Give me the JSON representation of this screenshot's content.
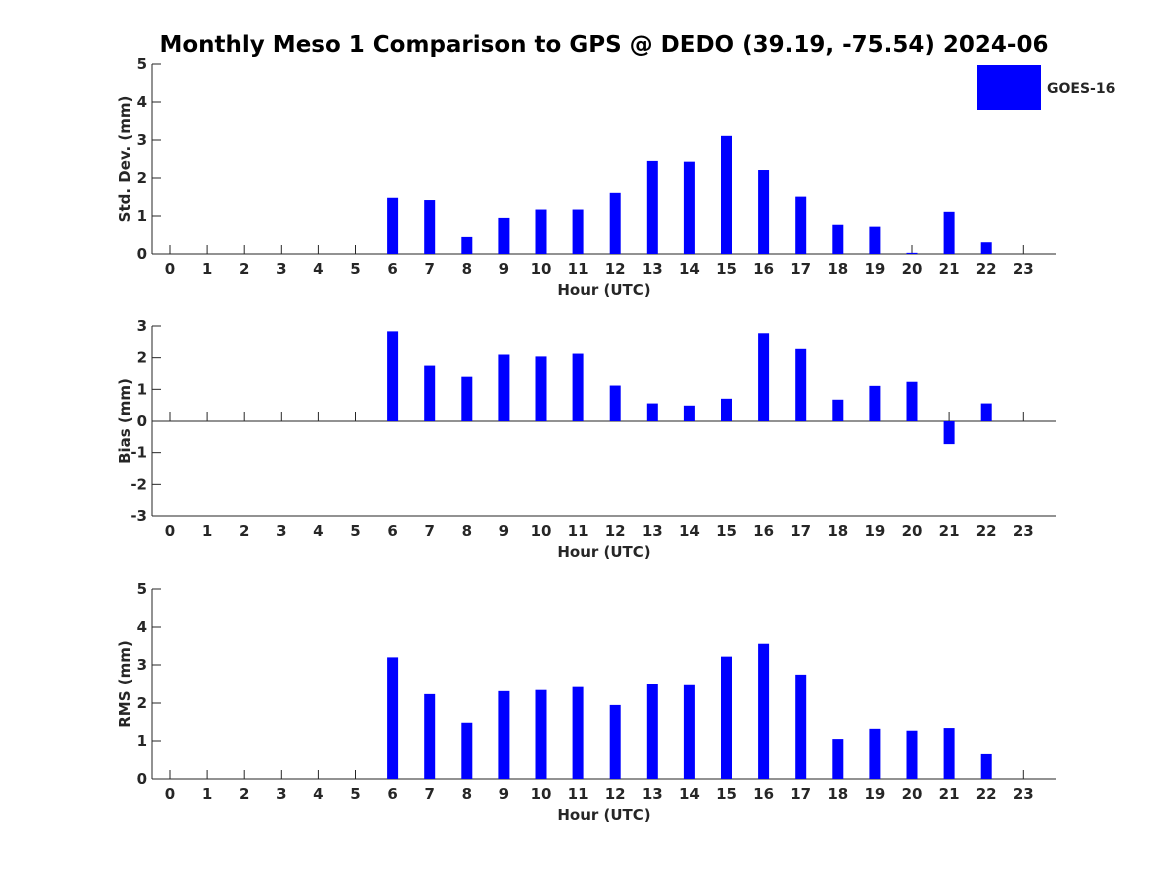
{
  "title": "Monthly Meso 1 Comparison to GPS @ DEDO (39.19, -75.54) 2024-06",
  "legend": {
    "label": "GOES-16",
    "color": "#0000ff",
    "placement": "top-right"
  },
  "colors": {
    "bar": "#0000ff",
    "axis": "#262626",
    "background": "#ffffff"
  },
  "chart_data": [
    {
      "type": "bar",
      "title": "Monthly Meso 1 Comparison to GPS @ DEDO (39.19, -75.54) 2024-06",
      "xlabel": "Hour (UTC)",
      "ylabel": "Std. Dev. (mm)",
      "ylim": [
        0,
        5
      ],
      "yticks": [
        0,
        1,
        2,
        3,
        4,
        5
      ],
      "categories": [
        "0",
        "1",
        "2",
        "3",
        "4",
        "5",
        "6",
        "7",
        "8",
        "9",
        "10",
        "11",
        "12",
        "13",
        "14",
        "15",
        "16",
        "17",
        "18",
        "19",
        "20",
        "21",
        "22",
        "23"
      ],
      "series": [
        {
          "name": "GOES-16",
          "values": [
            null,
            null,
            null,
            null,
            null,
            null,
            1.48,
            1.42,
            0.45,
            0.95,
            1.17,
            1.17,
            1.61,
            2.45,
            2.43,
            3.11,
            2.21,
            1.51,
            0.77,
            0.72,
            0.03,
            1.11,
            0.31,
            null
          ]
        }
      ],
      "grid": false,
      "legend": "top-right"
    },
    {
      "type": "bar",
      "xlabel": "Hour (UTC)",
      "ylabel": "Bias (mm)",
      "ylim": [
        -3,
        3
      ],
      "yticks": [
        -3,
        -2,
        -1,
        0,
        1,
        2,
        3
      ],
      "categories": [
        "0",
        "1",
        "2",
        "3",
        "4",
        "5",
        "6",
        "7",
        "8",
        "9",
        "10",
        "11",
        "12",
        "13",
        "14",
        "15",
        "16",
        "17",
        "18",
        "19",
        "20",
        "21",
        "22",
        "23"
      ],
      "series": [
        {
          "name": "GOES-16",
          "values": [
            null,
            null,
            null,
            null,
            null,
            null,
            2.83,
            1.75,
            1.4,
            2.1,
            2.04,
            2.13,
            1.12,
            0.55,
            0.48,
            0.7,
            2.77,
            2.28,
            0.67,
            1.11,
            1.24,
            -0.73,
            0.55,
            null
          ]
        }
      ],
      "grid": false
    },
    {
      "type": "bar",
      "xlabel": "Hour (UTC)",
      "ylabel": "RMS (mm)",
      "ylim": [
        0,
        5
      ],
      "yticks": [
        0,
        1,
        2,
        3,
        4,
        5
      ],
      "categories": [
        "0",
        "1",
        "2",
        "3",
        "4",
        "5",
        "6",
        "7",
        "8",
        "9",
        "10",
        "11",
        "12",
        "13",
        "14",
        "15",
        "16",
        "17",
        "18",
        "19",
        "20",
        "21",
        "22",
        "23"
      ],
      "series": [
        {
          "name": "GOES-16",
          "values": [
            null,
            null,
            null,
            null,
            null,
            null,
            3.2,
            2.24,
            1.48,
            2.32,
            2.35,
            2.43,
            1.95,
            2.5,
            2.48,
            3.22,
            3.56,
            2.74,
            1.05,
            1.32,
            1.27,
            1.34,
            0.66,
            null
          ]
        }
      ],
      "grid": false
    }
  ]
}
